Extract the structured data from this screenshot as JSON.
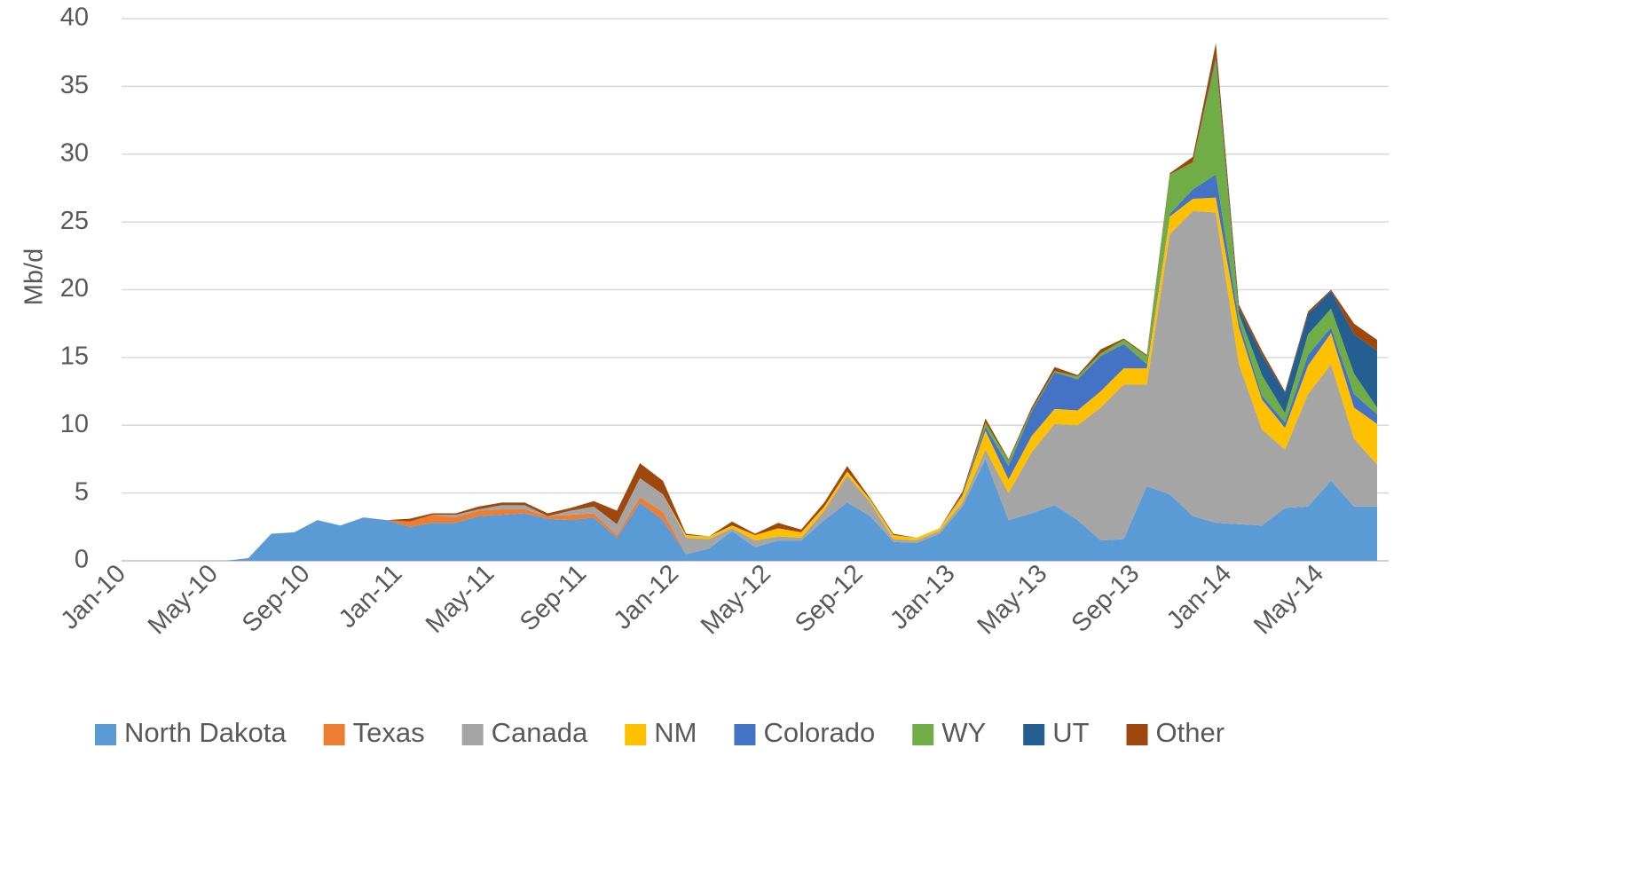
{
  "chart_data": {
    "type": "stacked_area",
    "y_label": "Mb/d",
    "categories": [
      "Jan-10",
      null,
      null,
      null,
      "May-10",
      null,
      null,
      null,
      "Sep-10",
      null,
      null,
      null,
      "Jan-11",
      null,
      null,
      null,
      "May-11",
      null,
      null,
      null,
      "Sep-11",
      null,
      null,
      null,
      "Jan-12",
      null,
      null,
      null,
      "May-12",
      null,
      null,
      null,
      "Sep-12",
      null,
      null,
      null,
      "Jan-13",
      null,
      null,
      null,
      "May-13",
      null,
      null,
      null,
      "Sep-13",
      null,
      null,
      null,
      "Jan-14",
      null,
      null,
      null,
      "May-14",
      null,
      null
    ],
    "series": [
      {
        "name": "North Dakota",
        "color": "#5b9bd5",
        "values": [
          0,
          0,
          0,
          0,
          0,
          0.2,
          2.0,
          2.1,
          3.0,
          2.6,
          3.2,
          3.0,
          2.5,
          2.8,
          2.8,
          3.3,
          3.4,
          3.5,
          3.1,
          3.0,
          3.2,
          1.7,
          4.3,
          3.0,
          0.5,
          0.9,
          2.2,
          1.0,
          1.5,
          1.5,
          3.0,
          4.3,
          3.3,
          1.4,
          1.3,
          2.0,
          4.0,
          7.5,
          3.0,
          3.5,
          4.1,
          3.0,
          1.5,
          1.6,
          5.5,
          4.9,
          3.3,
          2.8,
          2.7,
          2.6,
          3.9,
          4.0,
          5.9,
          4.0,
          4.0
        ]
      },
      {
        "name": "Texas",
        "color": "#ed7d31",
        "values": [
          0,
          0,
          0,
          0,
          0,
          0,
          0,
          0,
          0,
          0,
          0,
          0,
          0.4,
          0.6,
          0.4,
          0.4,
          0.4,
          0.3,
          0.2,
          0.4,
          0.3,
          0.2,
          0.4,
          0.6,
          0,
          0,
          0,
          0,
          0,
          0,
          0,
          0,
          0,
          0,
          0,
          0,
          0,
          0,
          0,
          0,
          0,
          0,
          0,
          0,
          0,
          0,
          0,
          0,
          0,
          0,
          0,
          0,
          0,
          0,
          0
        ]
      },
      {
        "name": "Canada",
        "color": "#a5a5a5",
        "values": [
          0,
          0,
          0,
          0,
          0,
          0,
          0,
          0,
          0,
          0,
          0,
          0,
          0,
          0,
          0.2,
          0.1,
          0.3,
          0.3,
          0,
          0.3,
          0.5,
          0.8,
          1.4,
          1.3,
          1.2,
          0.7,
          0.2,
          0.5,
          0.3,
          0.2,
          0.7,
          2.0,
          1.0,
          0.2,
          0.2,
          0.2,
          0.3,
          0.7,
          2.0,
          4.5,
          6.0,
          7.0,
          9.8,
          11.4,
          7.5,
          19.2,
          22.5,
          22.9,
          11.8,
          7.1,
          4.3,
          8.3,
          8.6,
          5.0,
          3.1
        ]
      },
      {
        "name": "NM",
        "color": "#ffc000",
        "values": [
          0,
          0,
          0,
          0,
          0,
          0,
          0,
          0,
          0,
          0,
          0,
          0,
          0,
          0,
          0,
          0,
          0,
          0,
          0,
          0,
          0,
          0,
          0,
          0,
          0.2,
          0.2,
          0.2,
          0.4,
          0.6,
          0.4,
          0.3,
          0.3,
          0.2,
          0.3,
          0.2,
          0.2,
          0.5,
          1.4,
          1.0,
          1.2,
          1.1,
          1.1,
          1.2,
          1.2,
          1.2,
          1.3,
          0.9,
          1.1,
          2.7,
          2.2,
          1.6,
          2.1,
          2.3,
          2.3,
          3.0
        ]
      },
      {
        "name": "Colorado",
        "color": "#4472c4",
        "values": [
          0,
          0,
          0,
          0,
          0,
          0,
          0,
          0,
          0,
          0,
          0,
          0,
          0,
          0,
          0,
          0,
          0,
          0,
          0,
          0,
          0,
          0,
          0,
          0,
          0,
          0,
          0,
          0,
          0,
          0,
          0,
          0,
          0,
          0,
          0,
          0,
          0.1,
          0.3,
          1.0,
          1.8,
          2.7,
          2.3,
          2.6,
          1.8,
          0.3,
          0.2,
          0.7,
          1.7,
          0.5,
          0.3,
          0.4,
          0.8,
          0.4,
          1.0,
          0.7
        ]
      },
      {
        "name": "WY",
        "color": "#70ad47",
        "values": [
          0,
          0,
          0,
          0,
          0,
          0,
          0,
          0,
          0,
          0,
          0,
          0,
          0,
          0,
          0,
          0,
          0,
          0,
          0,
          0,
          0,
          0,
          0,
          0,
          0,
          0,
          0,
          0,
          0,
          0,
          0,
          0,
          0,
          0,
          0,
          0,
          0,
          0.3,
          0.4,
          0.1,
          0.1,
          0.2,
          0.2,
          0.3,
          0.6,
          2.9,
          2.0,
          8.5,
          0.5,
          1.5,
          0.7,
          1.5,
          1.4,
          1.5,
          0.5
        ]
      },
      {
        "name": "UT",
        "color": "#255e91",
        "values": [
          0,
          0,
          0,
          0,
          0,
          0,
          0,
          0,
          0,
          0,
          0,
          0,
          0,
          0,
          0,
          0,
          0,
          0,
          0,
          0,
          0,
          0,
          0,
          0,
          0,
          0,
          0,
          0,
          0,
          0,
          0,
          0,
          0,
          0,
          0,
          0,
          0,
          0,
          0,
          0,
          0,
          0,
          0,
          0,
          0,
          0,
          0,
          0.2,
          0.4,
          1.5,
          1.5,
          1.5,
          1.3,
          2.9,
          4.2
        ]
      },
      {
        "name": "Other",
        "color": "#9e480e",
        "values": [
          0,
          0,
          0,
          0,
          0,
          0,
          0,
          0,
          0,
          0,
          0,
          0,
          0.2,
          0.1,
          0.1,
          0.2,
          0.2,
          0.2,
          0.2,
          0.2,
          0.4,
          1.0,
          1.1,
          1.0,
          0.1,
          0,
          0.3,
          0.1,
          0.4,
          0.2,
          0.3,
          0.4,
          0.1,
          0.1,
          0,
          0,
          0.2,
          0.3,
          0.1,
          0.2,
          0.3,
          0.1,
          0.3,
          0.1,
          0.1,
          0.1,
          0.4,
          1.0,
          0.3,
          0.3,
          0.1,
          0.2,
          0.1,
          0.8,
          0.8
        ]
      }
    ],
    "ylim": [
      0,
      40
    ],
    "yticks": [
      0,
      5,
      10,
      15,
      20,
      25,
      30,
      35,
      40
    ],
    "grid": true,
    "legend": "bottom"
  }
}
